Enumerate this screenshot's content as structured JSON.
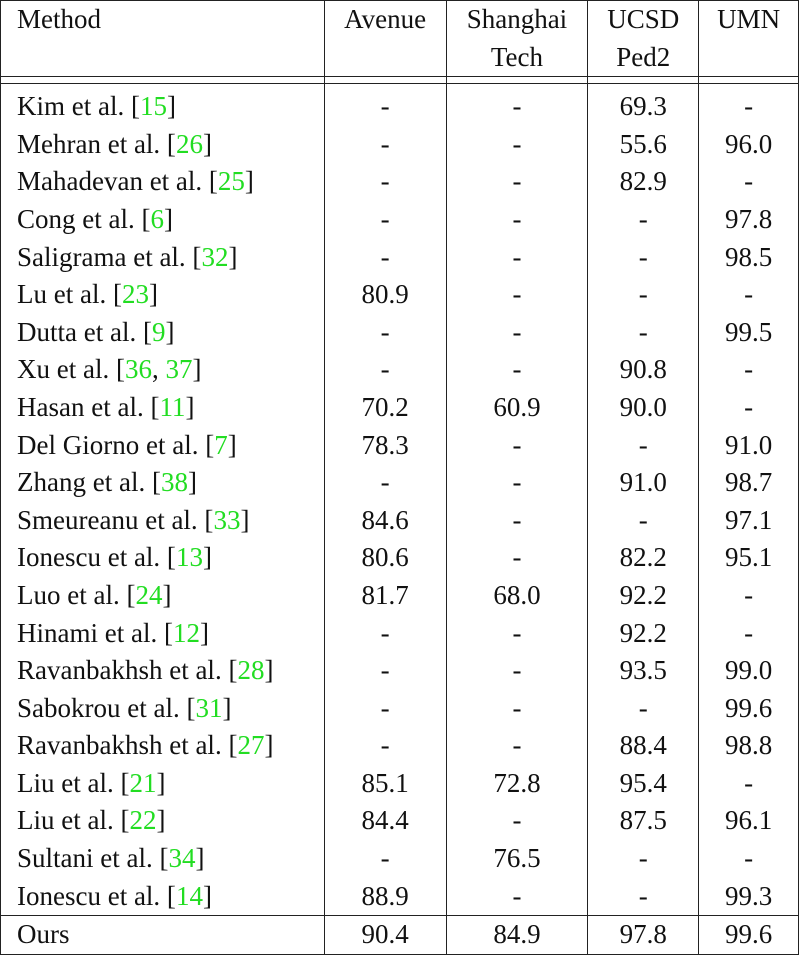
{
  "columns": {
    "method": "Method",
    "avenue": "Avenue",
    "shanghai_line1": "Shanghai",
    "shanghai_line2": "Tech",
    "ucsd_line1": "UCSD",
    "ucsd_line2": "Ped2",
    "umn": "UMN"
  },
  "rows": [
    {
      "name": "Kim et al. [",
      "refs": "15",
      "close": "]",
      "avenue": "-",
      "shanghai": "-",
      "ucsd": "69.3",
      "umn": "-"
    },
    {
      "name": "Mehran et al. [",
      "refs": "26",
      "close": "]",
      "avenue": "-",
      "shanghai": "-",
      "ucsd": "55.6",
      "umn": "96.0"
    },
    {
      "name": "Mahadevan et al. [",
      "refs": "25",
      "close": "]",
      "avenue": "-",
      "shanghai": "-",
      "ucsd": "82.9",
      "umn": "-"
    },
    {
      "name": "Cong et al. [",
      "refs": "6",
      "close": "]",
      "avenue": "-",
      "shanghai": "-",
      "ucsd": "-",
      "umn": "97.8"
    },
    {
      "name": "Saligrama et al. [",
      "refs": "32",
      "close": "]",
      "avenue": "-",
      "shanghai": "-",
      "ucsd": "-",
      "umn": "98.5"
    },
    {
      "name": "Lu et al. [",
      "refs": "23",
      "close": "]",
      "avenue": "80.9",
      "shanghai": "-",
      "ucsd": "-",
      "umn": "-"
    },
    {
      "name": "Dutta et al. [",
      "refs": "9",
      "close": "]",
      "avenue": "-",
      "shanghai": "-",
      "ucsd": "-",
      "umn": "99.5"
    },
    {
      "name": "Xu et al. [",
      "refs": "36",
      "sep": ", ",
      "refs2": "37",
      "close": "]",
      "avenue": "-",
      "shanghai": "-",
      "ucsd": "90.8",
      "umn": "-"
    },
    {
      "name": "Hasan et al. [",
      "refs": "11",
      "close": "]",
      "avenue": "70.2",
      "shanghai": "60.9",
      "ucsd": "90.0",
      "umn": "-"
    },
    {
      "name": "Del Giorno et al. [",
      "refs": "7",
      "close": "]",
      "avenue": "78.3",
      "shanghai": "-",
      "ucsd": "-",
      "umn": "91.0"
    },
    {
      "name": "Zhang et al. [",
      "refs": "38",
      "close": "]",
      "avenue": "-",
      "shanghai": "-",
      "ucsd": "91.0",
      "umn": "98.7"
    },
    {
      "name": "Smeureanu et al. [",
      "refs": "33",
      "close": "]",
      "avenue": "84.6",
      "shanghai": "-",
      "ucsd": "-",
      "umn": "97.1"
    },
    {
      "name": "Ionescu et al. [",
      "refs": "13",
      "close": "]",
      "avenue": "80.6",
      "shanghai": "-",
      "ucsd": "82.2",
      "umn": "95.1"
    },
    {
      "name": "Luo et al. [",
      "refs": "24",
      "close": "]",
      "avenue": "81.7",
      "shanghai": "68.0",
      "ucsd": "92.2",
      "umn": "-"
    },
    {
      "name": "Hinami et al. [",
      "refs": "12",
      "close": "]",
      "avenue": "-",
      "shanghai": "-",
      "ucsd": "92.2",
      "umn": "-"
    },
    {
      "name": "Ravanbakhsh et al. [",
      "refs": "28",
      "close": "]",
      "avenue": "-",
      "shanghai": "-",
      "ucsd": "93.5",
      "umn": "99.0"
    },
    {
      "name": "Sabokrou et al. [",
      "refs": "31",
      "close": "]",
      "avenue": "-",
      "shanghai": "-",
      "ucsd": "-",
      "umn": "99.6",
      "umn_bold": true
    },
    {
      "name": "Ravanbakhsh et al. [",
      "refs": "27",
      "close": "]",
      "avenue": "-",
      "shanghai": "-",
      "ucsd": "88.4",
      "umn": "98.8"
    },
    {
      "name": "Liu et al. [",
      "refs": "21",
      "close": "]",
      "avenue": "85.1",
      "shanghai": "72.8",
      "ucsd": "95.4",
      "umn": "-"
    },
    {
      "name": "Liu et al. [",
      "refs": "22",
      "close": "]",
      "avenue": "84.4",
      "shanghai": "-",
      "ucsd": "87.5",
      "umn": "96.1"
    },
    {
      "name": "Sultani et al. [",
      "refs": "34",
      "close": "]",
      "avenue": "-",
      "shanghai": "76.5",
      "ucsd": "-",
      "umn": "-"
    },
    {
      "name": "Ionescu et al. [",
      "refs": "14",
      "close": "]",
      "avenue": "88.9",
      "shanghai": "-",
      "ucsd": "-",
      "umn": "99.3"
    }
  ],
  "ours": {
    "name": "Ours",
    "avenue": "90.4",
    "shanghai": "84.9",
    "ucsd": "97.8",
    "umn": "99.6"
  }
}
